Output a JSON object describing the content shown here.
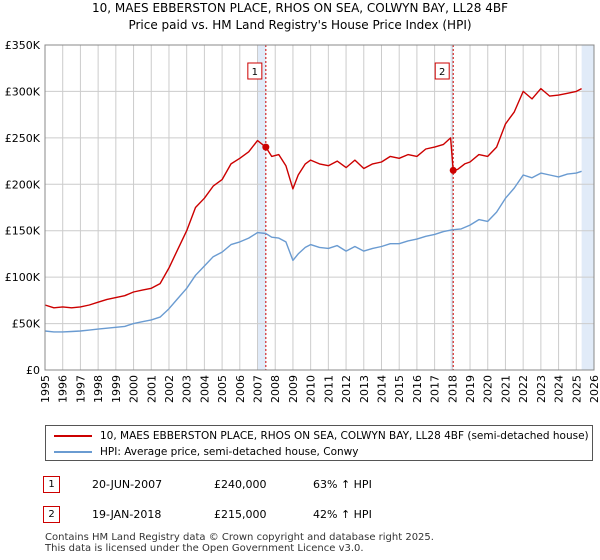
{
  "title_line1": "10, MAES EBBERSTON PLACE, RHOS ON SEA, COLWYN BAY, LL28 4BF",
  "title_line2": "Price paid vs. HM Land Registry's House Price Index (HPI)",
  "legend": {
    "property_label": "10, MAES EBBERSTON PLACE, RHOS ON SEA, COLWYN BAY, LL28 4BF (semi-detached house)",
    "hpi_label": "HPI: Average price, semi-detached house, Conwy"
  },
  "sales": [
    {
      "num": "1",
      "date": "20-JUN-2007",
      "price": "£240,000",
      "hpi": "63% ↑ HPI"
    },
    {
      "num": "2",
      "date": "19-JAN-2018",
      "price": "£215,000",
      "hpi": "42% ↑ HPI"
    }
  ],
  "footer": {
    "line1": "Contains HM Land Registry data © Crown copyright and database right 2025.",
    "line2": "This data is licensed under the Open Government Licence v3.0."
  },
  "colors": {
    "property": "#cc0000",
    "hpi": "#6a9bd1",
    "shade": "#dce8f7",
    "grid": "#cccccc"
  },
  "chart_data": {
    "type": "line",
    "title": "Price paid vs. HM Land Registry's House Price Index (HPI)",
    "xlim": [
      1995,
      2026
    ],
    "ylim": [
      0,
      350000
    ],
    "y_ticks": [
      0,
      50000,
      100000,
      150000,
      200000,
      250000,
      300000,
      350000
    ],
    "y_tick_labels": [
      "£0",
      "£50K",
      "£100K",
      "£150K",
      "£200K",
      "£250K",
      "£300K",
      "£350K"
    ],
    "x_ticks": [
      1995,
      1996,
      1997,
      1998,
      1999,
      2000,
      2001,
      2002,
      2003,
      2004,
      2005,
      2006,
      2007,
      2008,
      2009,
      2010,
      2011,
      2012,
      2013,
      2014,
      2015,
      2016,
      2017,
      2018,
      2019,
      2020,
      2021,
      2022,
      2023,
      2024,
      2025,
      2026
    ],
    "x_tick_labels": [
      "1995",
      "1996",
      "1997",
      "1998",
      "1999",
      "2000",
      "2001",
      "2002",
      "2003",
      "2004",
      "2005",
      "2006",
      "2007",
      "2008",
      "2009",
      "2010",
      "2011",
      "2012",
      "2013",
      "2014",
      "2015",
      "2016",
      "2017",
      "2018",
      "2019",
      "2020",
      "2021",
      "2022",
      "2023",
      "2024",
      "2025",
      "2026"
    ],
    "shaded_ranges": [
      [
        2007.0,
        2007.47
      ],
      [
        2017.9,
        2018.05
      ],
      [
        2025.3,
        2026
      ]
    ],
    "sale_markers": [
      {
        "label": "1",
        "x": 2007.47,
        "y": 240000
      },
      {
        "label": "2",
        "x": 2018.05,
        "y": 215000
      }
    ],
    "series": [
      {
        "name": "10, MAES EBBERSTON PLACE, RHOS ON SEA, COLWYN BAY, LL28 4BF (semi-detached house)",
        "x": [
          1995.0,
          1995.5,
          1996.0,
          1996.5,
          1997.0,
          1997.5,
          1998.0,
          1998.5,
          1999.0,
          1999.5,
          2000.0,
          2000.5,
          2001.0,
          2001.5,
          2002.0,
          2002.5,
          2003.0,
          2003.5,
          2004.0,
          2004.5,
          2005.0,
          2005.5,
          2006.0,
          2006.5,
          2007.0,
          2007.47,
          2007.8,
          2008.2,
          2008.6,
          2009.0,
          2009.3,
          2009.7,
          2010.0,
          2010.5,
          2011.0,
          2011.5,
          2012.0,
          2012.5,
          2013.0,
          2013.5,
          2014.0,
          2014.5,
          2015.0,
          2015.5,
          2016.0,
          2016.5,
          2017.0,
          2017.5,
          2017.9,
          2018.05,
          2018.3,
          2018.7,
          2019.0,
          2019.5,
          2020.0,
          2020.5,
          2021.0,
          2021.5,
          2022.0,
          2022.5,
          2023.0,
          2023.5,
          2024.0,
          2024.5,
          2025.0,
          2025.3
        ],
        "values": [
          70000,
          67000,
          68000,
          67000,
          68000,
          70000,
          73000,
          76000,
          78000,
          80000,
          84000,
          86000,
          88000,
          93000,
          110000,
          130000,
          150000,
          175000,
          185000,
          198000,
          205000,
          222000,
          228000,
          235000,
          247000,
          240000,
          230000,
          232000,
          220000,
          195000,
          210000,
          222000,
          226000,
          222000,
          220000,
          225000,
          218000,
          226000,
          217000,
          222000,
          224000,
          230000,
          228000,
          232000,
          230000,
          238000,
          240000,
          243000,
          250000,
          215000,
          216000,
          222000,
          224000,
          232000,
          230000,
          240000,
          265000,
          278000,
          300000,
          292000,
          303000,
          295000,
          296000,
          298000,
          300000,
          303000
        ]
      },
      {
        "name": "HPI: Average price, semi-detached house, Conwy",
        "x": [
          1995.0,
          1995.5,
          1996.0,
          1996.5,
          1997.0,
          1997.5,
          1998.0,
          1998.5,
          1999.0,
          1999.5,
          2000.0,
          2000.5,
          2001.0,
          2001.5,
          2002.0,
          2002.5,
          2003.0,
          2003.5,
          2004.0,
          2004.5,
          2005.0,
          2005.5,
          2006.0,
          2006.5,
          2007.0,
          2007.47,
          2007.8,
          2008.2,
          2008.6,
          2009.0,
          2009.3,
          2009.7,
          2010.0,
          2010.5,
          2011.0,
          2011.5,
          2012.0,
          2012.5,
          2013.0,
          2013.5,
          2014.0,
          2014.5,
          2015.0,
          2015.5,
          2016.0,
          2016.5,
          2017.0,
          2017.5,
          2018.0,
          2018.5,
          2019.0,
          2019.5,
          2020.0,
          2020.5,
          2021.0,
          2021.5,
          2022.0,
          2022.5,
          2023.0,
          2023.5,
          2024.0,
          2024.5,
          2025.0,
          2025.3
        ],
        "values": [
          42000,
          41000,
          41000,
          41500,
          42000,
          43000,
          44000,
          45000,
          46000,
          47000,
          50000,
          52000,
          54000,
          57000,
          66000,
          77000,
          88000,
          102000,
          112000,
          122000,
          127000,
          135000,
          138000,
          142000,
          148000,
          147000,
          143000,
          142000,
          138000,
          118000,
          125000,
          132000,
          135000,
          132000,
          131000,
          134000,
          128000,
          133000,
          128000,
          131000,
          133000,
          136000,
          136000,
          139000,
          141000,
          144000,
          146000,
          149000,
          151000,
          152000,
          156000,
          162000,
          160000,
          170000,
          185000,
          196000,
          210000,
          207000,
          212000,
          210000,
          208000,
          211000,
          212000,
          214000
        ]
      }
    ]
  }
}
